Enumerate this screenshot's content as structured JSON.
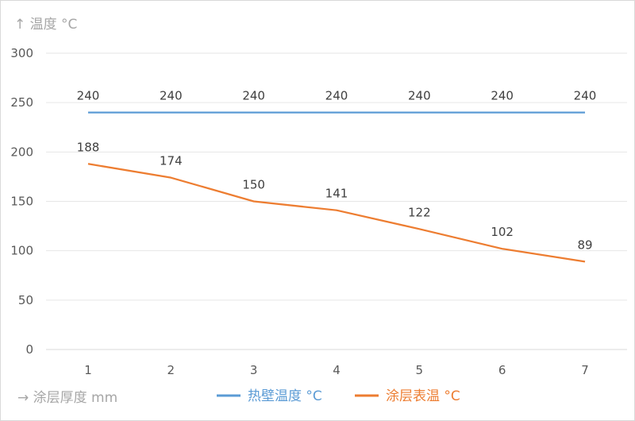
{
  "chart_data": {
    "type": "line",
    "ylabel": "↑ 温度 °C",
    "xlabel": "→ 涂层厚度 mm",
    "categories": [
      "1",
      "2",
      "3",
      "4",
      "5",
      "6",
      "7"
    ],
    "ylim": [
      0,
      300
    ],
    "yticks": [
      0,
      50,
      100,
      150,
      200,
      250,
      300
    ],
    "grid": true,
    "legend_position": "bottom",
    "series": [
      {
        "name": "热壁温度 °C",
        "color": "#5b9bd5",
        "values": [
          240,
          240,
          240,
          240,
          240,
          240,
          240
        ]
      },
      {
        "name": "涂层表温 °C",
        "color": "#ed7d31",
        "values": [
          188,
          174,
          150,
          141,
          122,
          102,
          89
        ]
      }
    ]
  }
}
